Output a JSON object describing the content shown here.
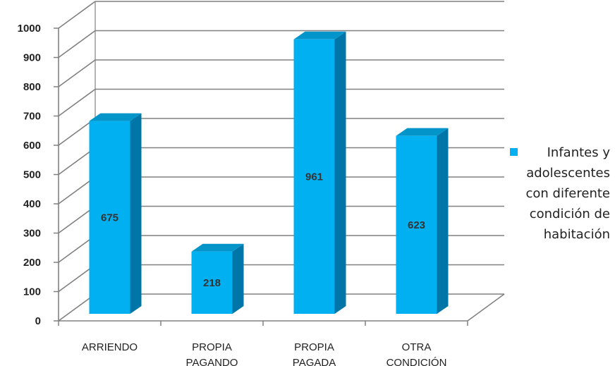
{
  "chart_data": {
    "type": "bar",
    "style": "3d-column",
    "categories": [
      [
        "ARRIENDO"
      ],
      [
        "PROPIA",
        "PAGANDO"
      ],
      [
        "PROPIA",
        "PAGADA"
      ],
      [
        "OTRA",
        "CONDICIÓN"
      ]
    ],
    "series": [
      {
        "name": [
          "Infantes y",
          "adolescentes",
          "con diferente",
          "condición de",
          "habitación"
        ],
        "values": [
          675,
          218,
          961,
          623
        ],
        "color": "#00b0f0"
      }
    ],
    "data_labels": [
      "675",
      "218",
      "961",
      "623"
    ],
    "yticks": [
      "0",
      "100",
      "200",
      "300",
      "400",
      "500",
      "600",
      "700",
      "800",
      "900",
      "1000"
    ],
    "ylim": [
      0,
      1000
    ],
    "grid": true,
    "legend": "right",
    "colors": {
      "front": "#00b0f0",
      "side": "#0075a7",
      "top": "#0394c9",
      "grid": "#808080"
    }
  }
}
